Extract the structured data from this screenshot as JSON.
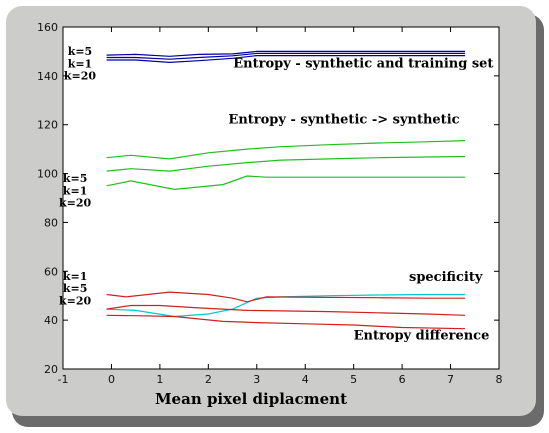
{
  "chart_data": {
    "type": "line",
    "xlabel": "Mean pixel diplacment",
    "ylabel": "",
    "xlim": [
      -1,
      8
    ],
    "ylim": [
      20,
      160
    ],
    "xticks": [
      -1,
      0,
      1,
      2,
      3,
      4,
      5,
      6,
      7,
      8
    ],
    "yticks": [
      20,
      40,
      60,
      80,
      100,
      120,
      140,
      160
    ],
    "grid": false,
    "annotations": [
      {
        "text": "Entropy - synthetic and training set",
        "x": 5.2,
        "y": 143.5
      },
      {
        "text": "Entropy - synthetic -> synthetic",
        "x": 4.8,
        "y": 120.5
      },
      {
        "text": "specificity",
        "x": 6.9,
        "y": 56
      },
      {
        "text": "Entropy difference",
        "x": 6.4,
        "y": 32
      }
    ],
    "k_labels": [
      {
        "text": "k=5",
        "x": -0.65,
        "y": 148.5
      },
      {
        "text": "k=1",
        "x": -0.65,
        "y": 143.5
      },
      {
        "text": "k=20",
        "x": -0.65,
        "y": 138.5
      },
      {
        "text": "k=5",
        "x": -0.75,
        "y": 96.5
      },
      {
        "text": "k=1",
        "x": -0.75,
        "y": 91.5
      },
      {
        "text": "k=20",
        "x": -0.75,
        "y": 86.5
      },
      {
        "text": "k=1",
        "x": -0.75,
        "y": 56.5
      },
      {
        "text": "k=5",
        "x": -0.75,
        "y": 51.5
      },
      {
        "text": "k=20",
        "x": -0.75,
        "y": 46.5
      }
    ],
    "series": [
      {
        "group": "Entropy - synthetic and training set",
        "color": "#0000a0",
        "x": [
          -0.1,
          0.5,
          1.2,
          1.8,
          2.5,
          3.0,
          4.0,
          5.0,
          6.0,
          7.3
        ],
        "y": [
          148.5,
          148.8,
          148.0,
          148.8,
          149.0,
          150.0,
          150.0,
          150.0,
          150.0,
          150.0
        ]
      },
      {
        "group": "Entropy - synthetic and training set",
        "color": "#0000a0",
        "x": [
          -0.1,
          0.5,
          1.2,
          1.8,
          2.5,
          3.0,
          4.0,
          5.0,
          6.0,
          7.3
        ],
        "y": [
          147.5,
          147.5,
          146.8,
          147.5,
          148.2,
          149.2,
          149.2,
          149.2,
          149.2,
          149.2
        ]
      },
      {
        "group": "Entropy - synthetic and training set",
        "color": "#0000a0",
        "x": [
          -0.1,
          0.5,
          1.2,
          1.8,
          2.5,
          3.0,
          4.0,
          5.0,
          6.0,
          7.3
        ],
        "y": [
          146.5,
          146.5,
          145.5,
          146.2,
          147.2,
          148.3,
          148.3,
          148.3,
          148.3,
          148.3
        ]
      },
      {
        "group": "Entropy - synthetic -> synthetic",
        "color": "#20c020",
        "x": [
          -0.1,
          0.4,
          1.2,
          2.0,
          2.8,
          3.5,
          4.5,
          5.5,
          6.5,
          7.3
        ],
        "y": [
          106.5,
          107.5,
          106.0,
          108.5,
          110.0,
          111.0,
          111.8,
          112.5,
          113.0,
          113.5
        ]
      },
      {
        "group": "Entropy - synthetic -> synthetic",
        "color": "#20c020",
        "x": [
          -0.1,
          0.4,
          1.2,
          2.0,
          2.8,
          3.5,
          4.5,
          5.5,
          6.5,
          7.3
        ],
        "y": [
          101.0,
          102.0,
          101.0,
          103.0,
          104.5,
          105.5,
          106.0,
          106.5,
          106.8,
          107.0
        ]
      },
      {
        "group": "Entropy - synthetic -> synthetic",
        "color": "#20c020",
        "x": [
          -0.1,
          0.4,
          1.3,
          2.3,
          2.8,
          3.2,
          4.5,
          5.5,
          6.5,
          7.3
        ],
        "y": [
          95.0,
          97.0,
          93.5,
          95.5,
          99.0,
          98.5,
          98.5,
          98.5,
          98.5,
          98.5
        ]
      },
      {
        "group": "specificity",
        "color": "#00c8c8",
        "x": [
          -0.1,
          0.5,
          1.3,
          2.0,
          2.5,
          3.0,
          3.5,
          4.5,
          5.5,
          6.5,
          7.3
        ],
        "y": [
          44.5,
          44.0,
          41.5,
          42.5,
          44.5,
          49.0,
          49.5,
          50.0,
          50.3,
          50.5,
          50.5
        ]
      },
      {
        "group": "Entropy difference",
        "color": "#d02020",
        "x": [
          -0.1,
          0.3,
          1.2,
          2.0,
          2.5,
          2.8,
          3.2,
          4.5,
          5.5,
          6.5,
          7.3
        ],
        "y": [
          50.5,
          49.5,
          51.5,
          50.5,
          49.0,
          47.5,
          49.5,
          49.3,
          49.2,
          49.0,
          49.0
        ]
      },
      {
        "group": "Entropy difference",
        "color": "#d02020",
        "x": [
          -0.1,
          0.4,
          1.0,
          1.8,
          2.8,
          3.5,
          4.5,
          5.5,
          6.5,
          7.3
        ],
        "y": [
          44.5,
          46.0,
          46.0,
          45.0,
          44.0,
          43.8,
          43.5,
          43.0,
          42.5,
          42.0
        ]
      },
      {
        "group": "Entropy difference",
        "color": "#d02020",
        "x": [
          -0.1,
          0.5,
          1.3,
          2.3,
          3.0,
          4.0,
          5.0,
          6.0,
          7.3
        ],
        "y": [
          42.0,
          41.8,
          41.5,
          39.5,
          39.0,
          38.5,
          38.0,
          37.0,
          36.5
        ]
      }
    ]
  }
}
